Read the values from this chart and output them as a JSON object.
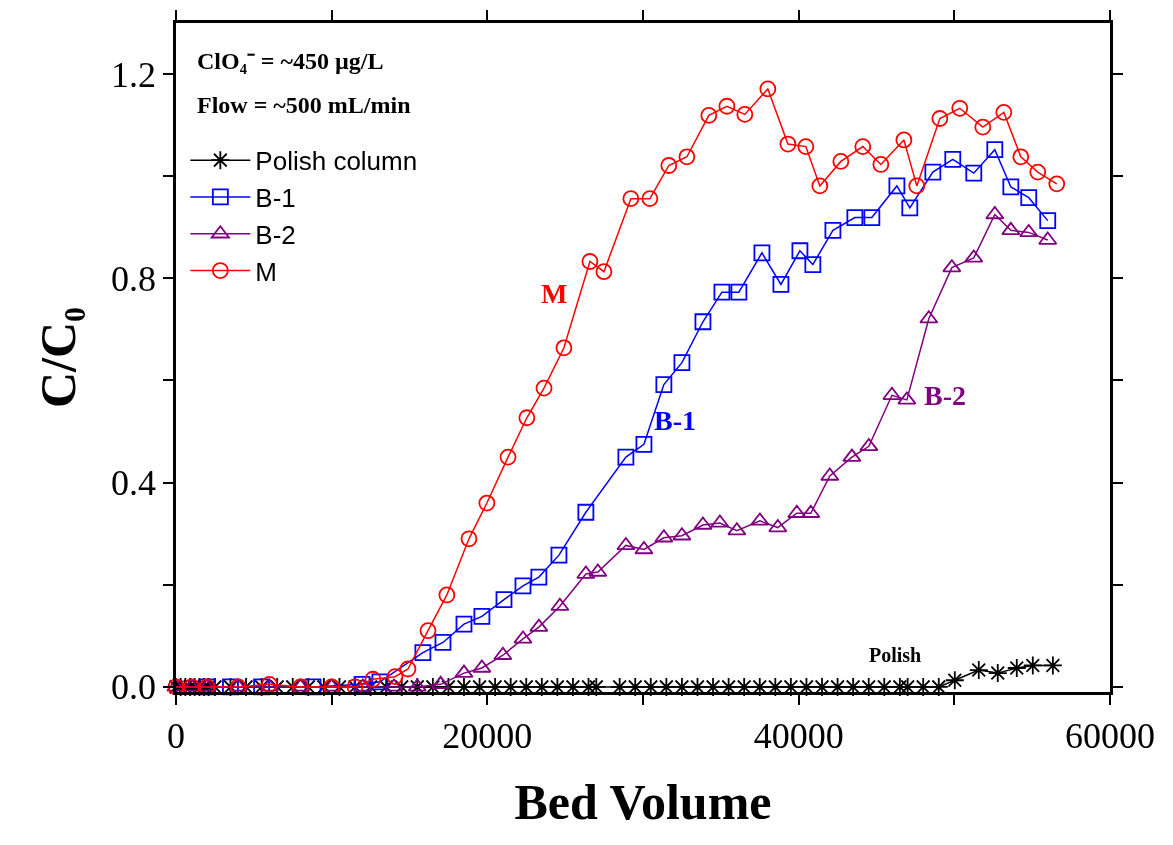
{
  "chart_data": {
    "type": "line",
    "xlabel": "Bed Volume",
    "ylabel": "C/C₀",
    "xlim": [
      0,
      60000
    ],
    "ylim": [
      -0.01,
      1.3
    ],
    "xticks": [
      0,
      {
        "value": 10000,
        "label": null
      },
      20000,
      {
        "value": 30000,
        "label": null
      },
      40000,
      {
        "value": 50000,
        "label": null
      },
      60000
    ],
    "yticks": [
      {
        "value": 0,
        "label": "0.0"
      },
      {
        "value": 0.2,
        "label": null
      },
      {
        "value": 0.4,
        "label": "0.4"
      },
      {
        "value": 0.6,
        "label": null
      },
      {
        "value": 0.8,
        "label": "0.8"
      },
      {
        "value": 1.0,
        "label": null
      },
      {
        "value": 1.2,
        "label": "1.2"
      }
    ],
    "legend": "top left",
    "annotations": [
      "ClO₄⁻ = ~450 µg/L",
      "Flow = ~500 mL/min",
      "M",
      "B-1",
      "B-2",
      "Polish"
    ],
    "series": [
      {
        "name": "Polish column",
        "color": "#000000",
        "marker": "cross",
        "x": [
          0,
          300,
          600,
          900,
          1200,
          1500,
          1800,
          2100,
          2500,
          3500,
          4500,
          5500,
          6500,
          7500,
          8500,
          9500,
          10500,
          11500,
          12500,
          13500,
          14500,
          15500,
          16500,
          17500,
          18500,
          19500,
          20500,
          21500,
          22500,
          23500,
          24500,
          25500,
          26500,
          27000,
          28500,
          29500,
          30500,
          31500,
          32500,
          33500,
          34500,
          35500,
          36500,
          37500,
          38500,
          39500,
          40500,
          41500,
          42500,
          43500,
          44500,
          45500,
          46500,
          47000,
          48000,
          49000,
          50030,
          51570,
          52790,
          54010,
          55040,
          56330
        ],
        "values": [
          0,
          0,
          0,
          0,
          0,
          0,
          0,
          0,
          0,
          0,
          0,
          0,
          0,
          0,
          0,
          0,
          0,
          0,
          0,
          0,
          0,
          0,
          0,
          0,
          0,
          0,
          0,
          0,
          0,
          0,
          0,
          0,
          0,
          0,
          0,
          0,
          0,
          0,
          0,
          0,
          0,
          0,
          0,
          0,
          0,
          0,
          0,
          0,
          0,
          0,
          0,
          0,
          0,
          0,
          0,
          0,
          0.013,
          0.033,
          0.027,
          0.037,
          0.042,
          0.042
        ]
      },
      {
        "name": "B-1",
        "color": "#0000ff",
        "marker": "square",
        "x": [
          2000,
          3500,
          5500,
          8800,
          11950,
          13100,
          15860,
          17150,
          18500,
          19650,
          21070,
          22290,
          23310,
          24600,
          26330,
          28900,
          30060,
          31340,
          32500,
          33850,
          35070,
          36160,
          37640,
          38860,
          40080,
          40910,
          42200,
          43610,
          44700,
          46310,
          47140,
          48620,
          49900,
          51250,
          52600,
          53630,
          54780,
          56000
        ],
        "values": [
          0,
          0,
          0,
          0,
          0.005,
          0.01,
          0.067,
          0.087,
          0.123,
          0.138,
          0.171,
          0.198,
          0.215,
          0.258,
          0.342,
          0.45,
          0.475,
          0.592,
          0.635,
          0.715,
          0.773,
          0.773,
          0.85,
          0.788,
          0.854,
          0.827,
          0.894,
          0.919,
          0.919,
          0.981,
          0.938,
          1.008,
          1.033,
          1.006,
          1.052,
          0.979,
          0.958,
          0.913
        ]
      },
      {
        "name": "B-2",
        "color": "#800080",
        "marker": "triangle",
        "x": [
          0,
          1000,
          2000,
          4000,
          6000,
          8000,
          10000,
          12000,
          14000,
          15500,
          17000,
          18500,
          19650,
          21000,
          22290,
          23310,
          24660,
          26330,
          27100,
          28900,
          30060,
          31340,
          32500,
          33850,
          34940,
          36030,
          37510,
          38660,
          39880,
          40780,
          42000,
          43420,
          44510,
          45990,
          46950,
          48360,
          49840,
          51250,
          52600,
          53630,
          54780,
          56000
        ],
        "values": [
          0,
          0,
          0,
          0,
          0,
          0,
          0,
          0,
          0,
          0,
          0.005,
          0.027,
          0.037,
          0.062,
          0.094,
          0.117,
          0.158,
          0.221,
          0.225,
          0.277,
          0.269,
          0.292,
          0.296,
          0.317,
          0.321,
          0.306,
          0.325,
          0.312,
          0.34,
          0.34,
          0.413,
          0.45,
          0.471,
          0.571,
          0.562,
          0.721,
          0.821,
          0.84,
          0.925,
          0.894,
          0.89,
          0.875
        ]
      },
      {
        "name": "M",
        "color": "#ff0000",
        "marker": "circle",
        "x": [
          0,
          1000,
          2000,
          4000,
          6000,
          8000,
          10000,
          11500,
          12650,
          14070,
          14900,
          16190,
          17400,
          18820,
          19970,
          21330,
          22540,
          23640,
          24920,
          26590,
          27490,
          29220,
          30440,
          31660,
          32820,
          34230,
          35390,
          36540,
          38020,
          39310,
          40460,
          41360,
          42710,
          44120,
          45280,
          46760,
          47590,
          49070,
          50350,
          51830,
          53180,
          54270,
          55360,
          56580
        ],
        "values": [
          0,
          0,
          0,
          0,
          0.005,
          0,
          0,
          0,
          0.015,
          0.02,
          0.035,
          0.11,
          0.18,
          0.29,
          0.36,
          0.45,
          0.527,
          0.585,
          0.664,
          0.833,
          0.813,
          0.956,
          0.956,
          1.021,
          1.038,
          1.119,
          1.137,
          1.121,
          1.171,
          1.063,
          1.058,
          0.981,
          1.029,
          1.058,
          1.023,
          1.071,
          0.981,
          1.113,
          1.133,
          1.096,
          1.125,
          1.038,
          1.008,
          0.985
        ]
      }
    ]
  }
}
